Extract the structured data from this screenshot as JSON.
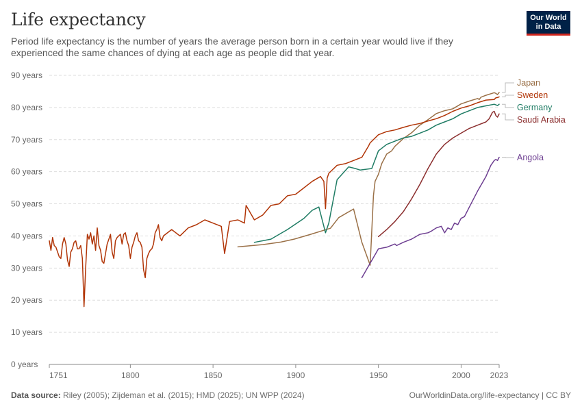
{
  "header": {
    "title": "Life expectancy",
    "subtitle": "Period life expectancy is the number of years the average person born in a certain year would live if they experienced the same chances of dying at each age as people did that year.",
    "logo_line1": "Our World",
    "logo_line2": "in Data"
  },
  "footer": {
    "source_label": "Data source:",
    "source_text": "Riley (2005); Zijdeman et al. (2015); HMD (2025); UN WPP (2024)",
    "credit": "OurWorldinData.org/life-expectancy | CC BY"
  },
  "chart_data": {
    "type": "line",
    "title": "Life expectancy",
    "xlabel": "",
    "ylabel": "",
    "xlim": [
      1751,
      2023
    ],
    "ylim": [
      0,
      90
    ],
    "y_ticks": [
      0,
      10,
      20,
      30,
      40,
      50,
      60,
      70,
      80,
      90
    ],
    "y_tick_labels": [
      "0 years",
      "10 years",
      "20 years",
      "30 years",
      "40 years",
      "50 years",
      "60 years",
      "70 years",
      "80 years",
      "90 years"
    ],
    "x_ticks": [
      1751,
      1800,
      1850,
      1900,
      1950,
      2000,
      2023
    ],
    "x_tick_labels": [
      "1751",
      "1800",
      "1850",
      "1900",
      "1950",
      "2000",
      "2023"
    ],
    "grid": "horizontal dashed",
    "legend": "right, line labels",
    "series": [
      {
        "name": "Japan",
        "color": "#9a7047",
        "x": [
          1865,
          1880,
          1891,
          1899,
          1909,
          1921,
          1926,
          1935,
          1940,
          1945,
          1947,
          1948,
          1950,
          1952,
          1955,
          1958,
          1960,
          1965,
          1970,
          1975,
          1980,
          1985,
          1990,
          1995,
          2000,
          2005,
          2010,
          2011,
          2012,
          2015,
          2020,
          2021,
          2022,
          2023
        ],
        "y": [
          36.6,
          37.3,
          38.1,
          39.0,
          40.5,
          42.4,
          45.7,
          48.4,
          38.0,
          30.9,
          52.5,
          57.0,
          59.2,
          62.5,
          65.5,
          66.5,
          67.9,
          70.3,
          72.1,
          74.5,
          76.2,
          78.1,
          79.0,
          79.6,
          81.1,
          82.0,
          82.8,
          82.5,
          83.2,
          83.8,
          84.6,
          84.4,
          84.0,
          84.7
        ]
      },
      {
        "name": "Sweden",
        "color": "#b13507",
        "x": [
          1751,
          1752,
          1753,
          1754,
          1755,
          1756,
          1757,
          1758,
          1759,
          1760,
          1761,
          1762,
          1763,
          1764,
          1765,
          1766,
          1767,
          1768,
          1769,
          1770,
          1771,
          1772,
          1773,
          1774,
          1775,
          1776,
          1777,
          1778,
          1779,
          1780,
          1781,
          1782,
          1783,
          1784,
          1785,
          1786,
          1787,
          1788,
          1789,
          1790,
          1791,
          1792,
          1793,
          1794,
          1795,
          1796,
          1797,
          1798,
          1799,
          1800,
          1801,
          1802,
          1803,
          1804,
          1805,
          1806,
          1807,
          1808,
          1809,
          1810,
          1811,
          1812,
          1813,
          1814,
          1815,
          1816,
          1817,
          1818,
          1819,
          1820,
          1825,
          1830,
          1835,
          1840,
          1845,
          1850,
          1855,
          1857,
          1860,
          1865,
          1869,
          1870,
          1875,
          1880,
          1885,
          1890,
          1895,
          1900,
          1905,
          1910,
          1915,
          1917,
          1918,
          1919,
          1920,
          1925,
          1930,
          1935,
          1940,
          1944,
          1945,
          1950,
          1955,
          1960,
          1965,
          1970,
          1975,
          1980,
          1985,
          1990,
          1995,
          2000,
          2005,
          2010,
          2015,
          2020,
          2021,
          2022,
          2023
        ],
        "y": [
          38.5,
          35.5,
          39.5,
          37.0,
          36.5,
          35.0,
          33.5,
          33.0,
          37.5,
          39.5,
          37.5,
          32.5,
          30.5,
          35.0,
          36.0,
          38.0,
          38.5,
          36.0,
          36.0,
          37.0,
          33.0,
          18.0,
          30.0,
          40.5,
          39.0,
          41.0,
          37.5,
          40.0,
          35.5,
          42.5,
          37.0,
          35.5,
          32.0,
          31.5,
          34.5,
          37.5,
          39.0,
          40.5,
          35.0,
          33.0,
          38.5,
          39.5,
          40.0,
          40.5,
          37.5,
          40.5,
          41.0,
          38.5,
          37.0,
          33.0,
          36.5,
          38.0,
          40.0,
          41.0,
          38.5,
          38.0,
          36.5,
          29.5,
          27.0,
          33.0,
          34.5,
          35.5,
          36.0,
          37.5,
          41.0,
          42.0,
          43.5,
          39.5,
          38.5,
          40.0,
          42.0,
          40.0,
          42.5,
          43.5,
          45.0,
          44.0,
          43.0,
          34.5,
          44.5,
          45.0,
          44.0,
          49.5,
          45.0,
          46.5,
          49.5,
          50.0,
          52.5,
          53.0,
          55.0,
          57.0,
          58.5,
          57.0,
          48.5,
          58.0,
          59.5,
          62.0,
          62.5,
          63.5,
          64.5,
          68.0,
          69.0,
          71.5,
          72.5,
          73.0,
          73.8,
          74.5,
          75.0,
          75.8,
          76.5,
          77.5,
          78.8,
          79.8,
          80.5,
          81.5,
          82.3,
          82.5,
          83.0,
          83.1,
          83.3
        ]
      },
      {
        "name": "Germany",
        "color": "#1f7c64",
        "x": [
          1875,
          1885,
          1895,
          1905,
          1910,
          1914,
          1918,
          1920,
          1925,
          1932,
          1936,
          1939,
          1946,
          1950,
          1955,
          1960,
          1965,
          1970,
          1975,
          1980,
          1985,
          1990,
          1995,
          2000,
          2005,
          2010,
          2015,
          2020,
          2021,
          2022,
          2023
        ],
        "y": [
          38.0,
          39.0,
          42.0,
          45.5,
          48.0,
          49.0,
          41.0,
          44.0,
          57.5,
          61.5,
          61.0,
          60.5,
          61.0,
          66.5,
          68.5,
          69.5,
          70.5,
          71.0,
          72.0,
          73.0,
          74.5,
          75.5,
          76.5,
          78.0,
          79.0,
          80.0,
          80.5,
          81.0,
          80.8,
          80.6,
          81.0
        ]
      },
      {
        "name": "Saudi Arabia",
        "color": "#8b2e2e",
        "x": [
          1950,
          1955,
          1960,
          1965,
          1970,
          1975,
          1980,
          1985,
          1990,
          1995,
          2000,
          2005,
          2010,
          2015,
          2017,
          2019,
          2020,
          2021,
          2022,
          2023
        ],
        "y": [
          39.8,
          42.0,
          44.5,
          47.5,
          51.5,
          56.0,
          61.0,
          65.5,
          68.5,
          70.5,
          72.0,
          73.5,
          74.5,
          75.5,
          76.5,
          78.5,
          78.8,
          77.5,
          77.0,
          78.0
        ]
      },
      {
        "name": "Angola",
        "color": "#6d3e91",
        "x": [
          1940,
          1945,
          1950,
          1955,
          1960,
          1961,
          1965,
          1970,
          1975,
          1980,
          1982,
          1985,
          1988,
          1990,
          1992,
          1994,
          1996,
          1998,
          2000,
          2002,
          2005,
          2010,
          2015,
          2018,
          2020,
          2021,
          2022,
          2023
        ],
        "y": [
          27.0,
          31.5,
          36.0,
          36.5,
          37.5,
          37.0,
          38.0,
          39.0,
          40.5,
          41.0,
          41.5,
          42.5,
          43.0,
          41.0,
          42.5,
          42.0,
          44.0,
          43.5,
          45.5,
          46.0,
          49.0,
          54.0,
          58.5,
          62.0,
          63.5,
          63.8,
          63.5,
          64.5
        ]
      }
    ]
  }
}
